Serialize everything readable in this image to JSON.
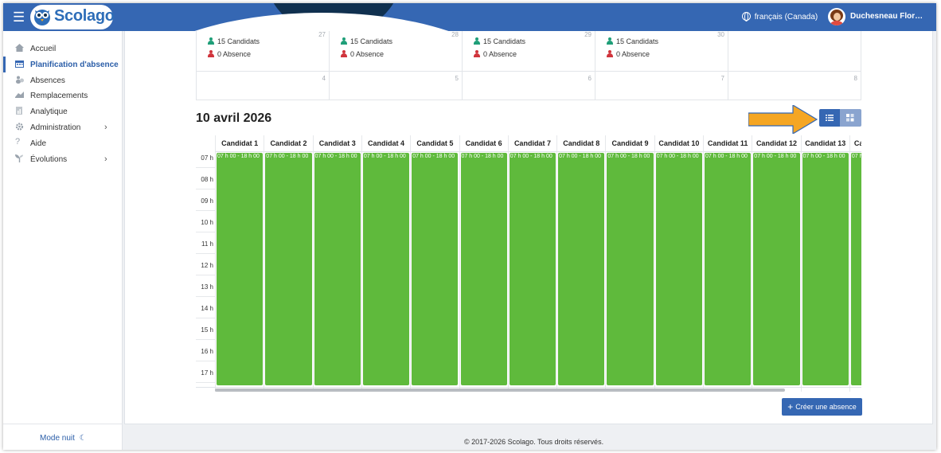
{
  "header": {
    "brand": "Scolago",
    "language": "français (Canada)",
    "user": "Duchesneau Flor…"
  },
  "sidebar": {
    "items": [
      {
        "label": "Accueil",
        "icon": "home-icon"
      },
      {
        "label": "Planification d'absence",
        "icon": "calendar-icon",
        "active": true
      },
      {
        "label": "Absences",
        "icon": "people-icon"
      },
      {
        "label": "Remplacements",
        "icon": "swap-icon"
      },
      {
        "label": "Analytique",
        "icon": "chart-icon"
      },
      {
        "label": "Administration",
        "icon": "gear-icon",
        "has_submenu": true
      },
      {
        "label": "Aide",
        "icon": "help-icon"
      },
      {
        "label": "Évolutions",
        "icon": "sprout-icon",
        "has_submenu": true
      }
    ],
    "night_mode": "Mode nuit"
  },
  "month": {
    "row1": [
      {
        "candidats": "15 Candidats",
        "absences": "0 Absence"
      },
      {
        "candidats": "15 Candidats",
        "absences": "0 Absence"
      },
      {
        "candidats": "15 Candidats",
        "absences": "0 Absence"
      },
      {
        "candidats": "15 Candidats",
        "absences": "0 Absence"
      },
      {}
    ],
    "row2_days": [
      "4",
      "5",
      "6",
      "7",
      "8"
    ]
  },
  "day_view": {
    "title": "10 avril 2026",
    "hours": [
      "07 h",
      "08 h",
      "09 h",
      "10 h",
      "11 h",
      "12 h",
      "13 h",
      "14 h",
      "15 h",
      "16 h",
      "17 h"
    ],
    "candidates": [
      "Candidat 1",
      "Candidat 2",
      "Candidat 3",
      "Candidat 4",
      "Candidat 5",
      "Candidat 6",
      "Candidat 7",
      "Candidat 8",
      "Candidat 9",
      "Candidat 10",
      "Candidat 11",
      "Candidat 12",
      "Candidat 13",
      "Ca"
    ],
    "slot_label": "07 h 00 - 18 h 00",
    "slot_color": "#5fba3c"
  },
  "actions": {
    "create_absence": "Créer une absence"
  },
  "footer": {
    "copyright": "© 2017-2026 Scolago. Tous droits réservés."
  },
  "colors": {
    "primary": "#3567b3",
    "candidate_icon": "#1e9e78",
    "absence_icon": "#d0343c",
    "annotation_arrow": "#f5a623"
  }
}
